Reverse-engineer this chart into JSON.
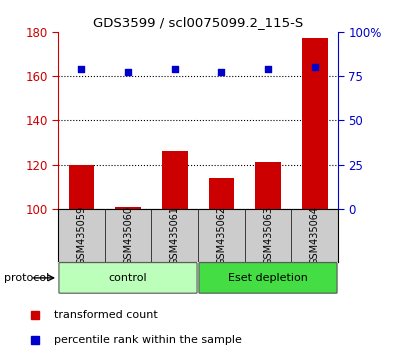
{
  "title": "GDS3599 / scl0075099.2_115-S",
  "categories": [
    "GSM435059",
    "GSM435060",
    "GSM435061",
    "GSM435062",
    "GSM435063",
    "GSM435064"
  ],
  "bar_values": [
    120,
    101,
    126,
    114,
    121,
    177
  ],
  "percentile_values": [
    163,
    162,
    163,
    162,
    163,
    164
  ],
  "bar_color": "#cc0000",
  "dot_color": "#0000cc",
  "ymin": 100,
  "ymax": 180,
  "y_ticks": [
    100,
    120,
    140,
    160,
    180
  ],
  "y_right_ticks": [
    0,
    25,
    50,
    75,
    100
  ],
  "y_right_labels": [
    "0",
    "25",
    "50",
    "75",
    "100%"
  ],
  "dotted_lines": [
    120,
    140,
    160
  ],
  "protocol_groups": [
    {
      "label": "control",
      "start": 0,
      "end": 3,
      "color": "#bbffbb"
    },
    {
      "label": "Eset depletion",
      "start": 3,
      "end": 6,
      "color": "#44dd44"
    }
  ],
  "protocol_label": "protocol",
  "legend_items": [
    {
      "color": "#cc0000",
      "label": "transformed count"
    },
    {
      "color": "#0000cc",
      "label": "percentile rank within the sample"
    }
  ],
  "bar_width": 0.55,
  "background_color": "#ffffff",
  "plot_bg_color": "#ffffff",
  "tick_area_bg": "#cccccc"
}
